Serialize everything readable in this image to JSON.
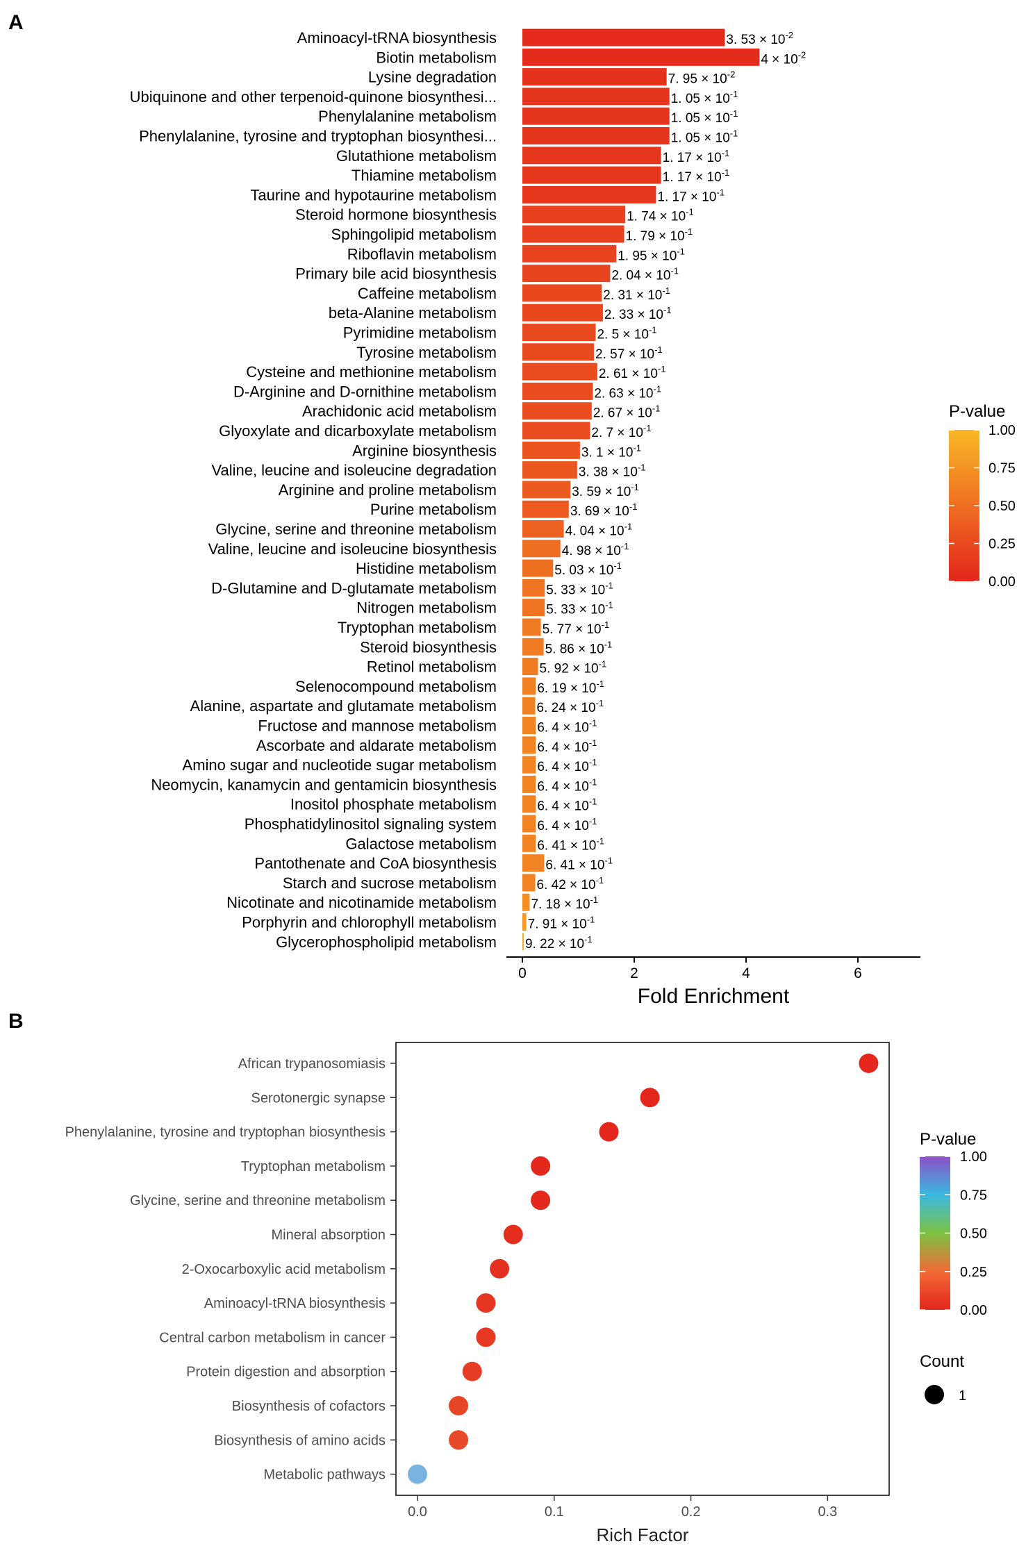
{
  "panels": {
    "a_label": "A",
    "b_label": "B"
  },
  "chart_data": [
    {
      "panel": "A",
      "type": "bar",
      "orientation": "horizontal",
      "xlabel": "Fold Enrichment",
      "ylabel": "",
      "xlim": [
        -0.3,
        7.0
      ],
      "xticks": [
        0,
        2,
        4,
        6
      ],
      "grid": false,
      "legend": {
        "title": "P-value",
        "position": "right",
        "ticks": [
          "1.00",
          "0.75",
          "0.50",
          "0.25",
          "0.00"
        ],
        "colors": [
          "#e4261c",
          "#f9b726"
        ]
      },
      "categories": [
        "Aminoacyl-tRNA biosynthesis",
        "Biotin metabolism",
        "Lysine degradation",
        "Ubiquinone and other terpenoid-quinone biosynthesi...",
        "Phenylalanine metabolism",
        "Phenylalanine, tyrosine and tryptophan biosynthesi...",
        "Glutathione metabolism",
        "Thiamine metabolism",
        "Taurine and hypotaurine metabolism",
        "Steroid hormone biosynthesis",
        "Sphingolipid metabolism",
        "Riboflavin metabolism",
        "Primary bile acid biosynthesis",
        "Caffeine metabolism",
        "beta-Alanine metabolism",
        "Pyrimidine metabolism",
        "Tyrosine metabolism",
        "Cysteine and methionine metabolism",
        "D-Arginine and D-ornithine metabolism",
        "Arachidonic acid metabolism",
        "Glyoxylate and dicarboxylate metabolism",
        "Arginine biosynthesis",
        "Valine, leucine and isoleucine degradation",
        "Arginine and proline metabolism",
        "Purine metabolism",
        "Glycine, serine and threonine metabolism",
        "Valine, leucine and isoleucine biosynthesis",
        "Histidine metabolism",
        "D-Glutamine and D-glutamate metabolism",
        "Nitrogen metabolism",
        "Tryptophan metabolism",
        "Steroid biosynthesis",
        "Retinol metabolism",
        "Selenocompound metabolism",
        "Alanine, aspartate and glutamate metabolism",
        "Fructose and mannose metabolism",
        "Ascorbate and aldarate metabolism",
        "Amino sugar and nucleotide sugar metabolism",
        "Neomycin, kanamycin and gentamicin biosynthesis",
        "Inositol phosphate metabolism",
        "Phosphatidylinositol signaling system",
        "Galactose metabolism",
        "Pantothenate and CoA biosynthesis",
        "Starch and sucrose metabolism",
        "Nicotinate and nicotinamide metabolism",
        "Porphyrin and chlorophyll metabolism",
        "Glycerophospholipid metabolism"
      ],
      "values": [
        3.62,
        4.24,
        2.58,
        2.63,
        2.63,
        2.63,
        2.48,
        2.48,
        2.39,
        1.84,
        1.82,
        1.68,
        1.57,
        1.42,
        1.44,
        1.31,
        1.28,
        1.34,
        1.26,
        1.24,
        1.21,
        1.03,
        0.98,
        0.86,
        0.83,
        0.74,
        0.68,
        0.55,
        0.4,
        0.4,
        0.33,
        0.38,
        0.28,
        0.24,
        0.23,
        0.24,
        0.24,
        0.24,
        0.24,
        0.24,
        0.24,
        0.24,
        0.39,
        0.23,
        0.13,
        0.07,
        0.02
      ],
      "pvalues": [
        0.0353,
        0.04,
        0.0795,
        0.105,
        0.105,
        0.105,
        0.117,
        0.117,
        0.117,
        0.174,
        0.179,
        0.195,
        0.204,
        0.231,
        0.233,
        0.25,
        0.257,
        0.261,
        0.263,
        0.267,
        0.27,
        0.31,
        0.338,
        0.359,
        0.369,
        0.404,
        0.498,
        0.503,
        0.533,
        0.533,
        0.577,
        0.586,
        0.592,
        0.619,
        0.624,
        0.64,
        0.64,
        0.64,
        0.64,
        0.64,
        0.64,
        0.641,
        0.641,
        0.642,
        0.718,
        0.791,
        0.922
      ],
      "data_labels": [
        {
          "m": "3. 53",
          "e": "-2"
        },
        {
          "m": "4",
          "e": "-2"
        },
        {
          "m": "7. 95",
          "e": "-2"
        },
        {
          "m": "1. 05",
          "e": "-1"
        },
        {
          "m": "1. 05",
          "e": "-1"
        },
        {
          "m": "1. 05",
          "e": "-1"
        },
        {
          "m": "1. 17",
          "e": "-1"
        },
        {
          "m": "1. 17",
          "e": "-1"
        },
        {
          "m": "1. 17",
          "e": "-1"
        },
        {
          "m": "1. 74",
          "e": "-1"
        },
        {
          "m": "1. 79",
          "e": "-1"
        },
        {
          "m": "1. 95",
          "e": "-1"
        },
        {
          "m": "2. 04",
          "e": "-1"
        },
        {
          "m": "2. 31",
          "e": "-1"
        },
        {
          "m": "2. 33",
          "e": "-1"
        },
        {
          "m": "2. 5",
          "e": "-1"
        },
        {
          "m": "2. 57",
          "e": "-1"
        },
        {
          "m": "2. 61",
          "e": "-1"
        },
        {
          "m": "2. 63",
          "e": "-1"
        },
        {
          "m": "2. 67",
          "e": "-1"
        },
        {
          "m": "2. 7",
          "e": "-1"
        },
        {
          "m": "3. 1",
          "e": "-1"
        },
        {
          "m": "3. 38",
          "e": "-1"
        },
        {
          "m": "3. 59",
          "e": "-1"
        },
        {
          "m": "3. 69",
          "e": "-1"
        },
        {
          "m": "4. 04",
          "e": "-1"
        },
        {
          "m": "4. 98",
          "e": "-1"
        },
        {
          "m": "5. 03",
          "e": "-1"
        },
        {
          "m": "5. 33",
          "e": "-1"
        },
        {
          "m": "5. 33",
          "e": "-1"
        },
        {
          "m": "5. 77",
          "e": "-1"
        },
        {
          "m": "5. 86",
          "e": "-1"
        },
        {
          "m": "5. 92",
          "e": "-1"
        },
        {
          "m": "6. 19",
          "e": "-1"
        },
        {
          "m": "6. 24",
          "e": "-1"
        },
        {
          "m": "6. 4",
          "e": "-1"
        },
        {
          "m": "6. 4",
          "e": "-1"
        },
        {
          "m": "6. 4",
          "e": "-1"
        },
        {
          "m": "6. 4",
          "e": "-1"
        },
        {
          "m": "6. 4",
          "e": "-1"
        },
        {
          "m": "6. 4",
          "e": "-1"
        },
        {
          "m": "6. 41",
          "e": "-1"
        },
        {
          "m": "6. 41",
          "e": "-1"
        },
        {
          "m": "6. 42",
          "e": "-1"
        },
        {
          "m": "7. 18",
          "e": "-1"
        },
        {
          "m": "7. 91",
          "e": "-1"
        },
        {
          "m": "9. 22",
          "e": "-1"
        }
      ]
    },
    {
      "panel": "B",
      "type": "scatter",
      "xlabel": "Rich Factor",
      "ylabel": "",
      "xlim": [
        -0.015,
        0.345
      ],
      "xticks": [
        "0.0",
        "0.1",
        "0.2",
        "0.3"
      ],
      "xtick_values": [
        0,
        0.1,
        0.2,
        0.3
      ],
      "grid": false,
      "legend": {
        "title": "P-value",
        "position": "right",
        "ticks": [
          "1.00",
          "0.75",
          "0.50",
          "0.25",
          "0.00"
        ],
        "colors": [
          "#e4261c",
          "#f26a36",
          "#7cc242",
          "#3ab8e0",
          "#8e4fc7"
        ]
      },
      "size_legend": {
        "title": "Count",
        "entries": [
          "1"
        ]
      },
      "categories": [
        "African trypanosomiasis",
        "Serotonergic synapse",
        "Phenylalanine, tyrosine and tryptophan biosynthesis",
        "Tryptophan metabolism",
        "Glycine, serine and threonine metabolism",
        "Mineral absorption",
        "2-Oxocarboxylic acid metabolism",
        "Aminoacyl-tRNA biosynthesis",
        "Central carbon metabolism in cancer",
        "Protein digestion and absorption",
        "Biosynthesis of cofactors",
        "Biosynthesis of amino acids",
        "Metabolic pathways"
      ],
      "x": [
        0.33,
        0.17,
        0.14,
        0.09,
        0.09,
        0.07,
        0.06,
        0.05,
        0.05,
        0.04,
        0.03,
        0.03,
        0.0
      ],
      "colors": [
        "#e4261c",
        "#e4261c",
        "#e4261c",
        "#e4281c",
        "#e4281c",
        "#e52d1e",
        "#e5301f",
        "#e63521",
        "#e63822",
        "#e63d24",
        "#e84527",
        "#e84a29",
        "#7bb3e0"
      ],
      "counts": [
        1,
        1,
        1,
        1,
        1,
        1,
        1,
        1,
        1,
        1,
        1,
        1,
        1
      ]
    }
  ]
}
